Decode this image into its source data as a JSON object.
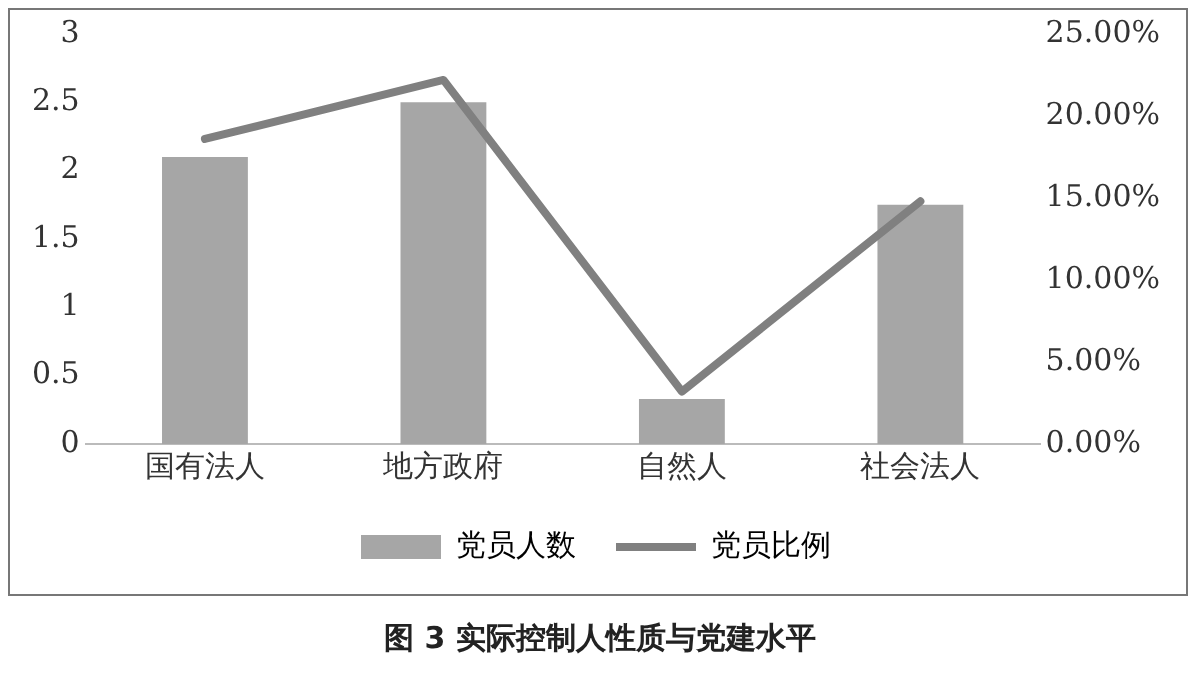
{
  "chart_data": {
    "type": "bar",
    "title": "图 3  实际控制人性质与党建水平",
    "categories": [
      "国有法人",
      "地方政府",
      "自然人",
      "社会法人"
    ],
    "series": [
      {
        "name": "党员人数",
        "color": "#a6a6a6",
        "values": [
          2.1,
          2.5,
          0.33,
          1.75
        ]
      },
      {
        "name": "党员比例",
        "type": "line",
        "axis": "y2",
        "color": "#808080",
        "values": [
          18.6,
          22.2,
          3.2,
          14.8
        ]
      }
    ],
    "ylim": [
      0,
      3
    ],
    "yticks": [
      0,
      0.5,
      1,
      1.5,
      2,
      2.5,
      3
    ],
    "y2lim": [
      0,
      25
    ],
    "y2ticks": [
      {
        "value": 0,
        "label": "0.00%"
      },
      {
        "value": 5,
        "label": "5.00%"
      },
      {
        "value": 10,
        "label": "10.00%"
      },
      {
        "value": 15,
        "label": "15.00%"
      },
      {
        "value": 20,
        "label": "20.00%"
      },
      {
        "value": 25,
        "label": "25.00%"
      }
    ],
    "grid": false,
    "legend": "bottom",
    "marker": "none",
    "line_style": "solid"
  }
}
